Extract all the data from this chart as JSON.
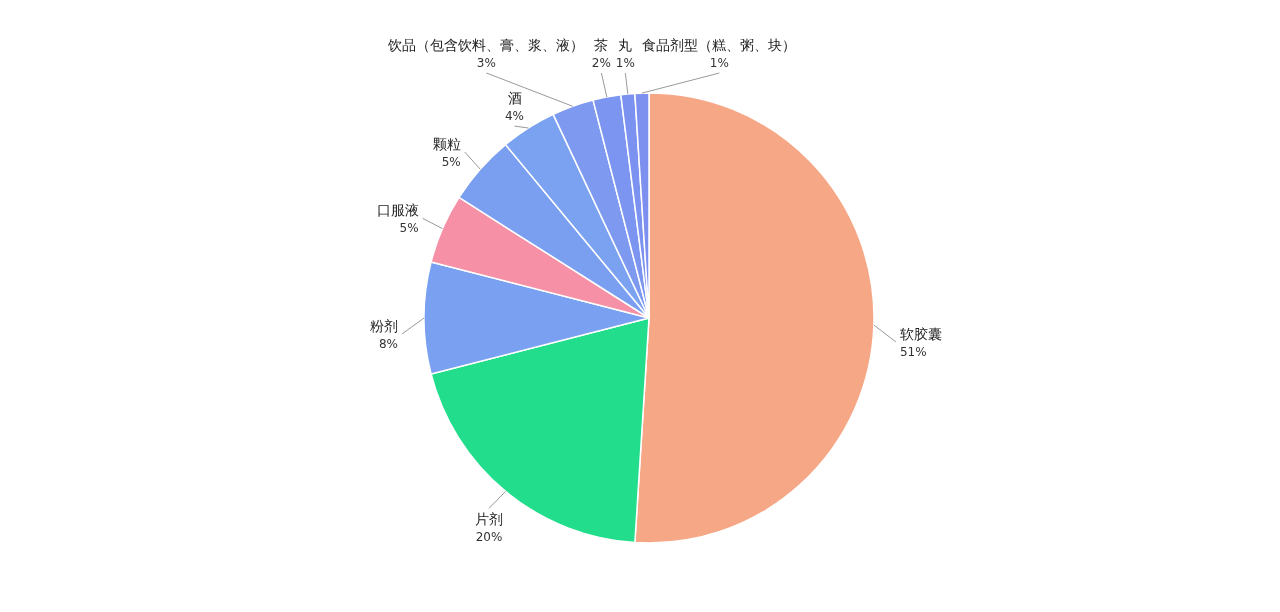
{
  "chart_data": {
    "type": "pie",
    "categories": [
      "软胶囊",
      "片剂",
      "粉剂",
      "口服液",
      "颗粒",
      "酒",
      "饮品（包含饮料、膏、浆、液）",
      "茶",
      "丸",
      "食品剂型（糕、粥、块）"
    ],
    "values": [
      51,
      20,
      8,
      5,
      5,
      4,
      3,
      2,
      1,
      1
    ],
    "value_labels": [
      "51%",
      "20%",
      "8%",
      "5%",
      "5%",
      "4%",
      "3%",
      "2%",
      "1%",
      "1%"
    ],
    "colors": [
      "#f6a886",
      "#22de8c",
      "#7aa0f2",
      "#f590a6",
      "#7a9ff0",
      "#7aa2f1",
      "#7d9af0",
      "#7b95f0",
      "#7b92f0",
      "#7d90ef"
    ]
  }
}
